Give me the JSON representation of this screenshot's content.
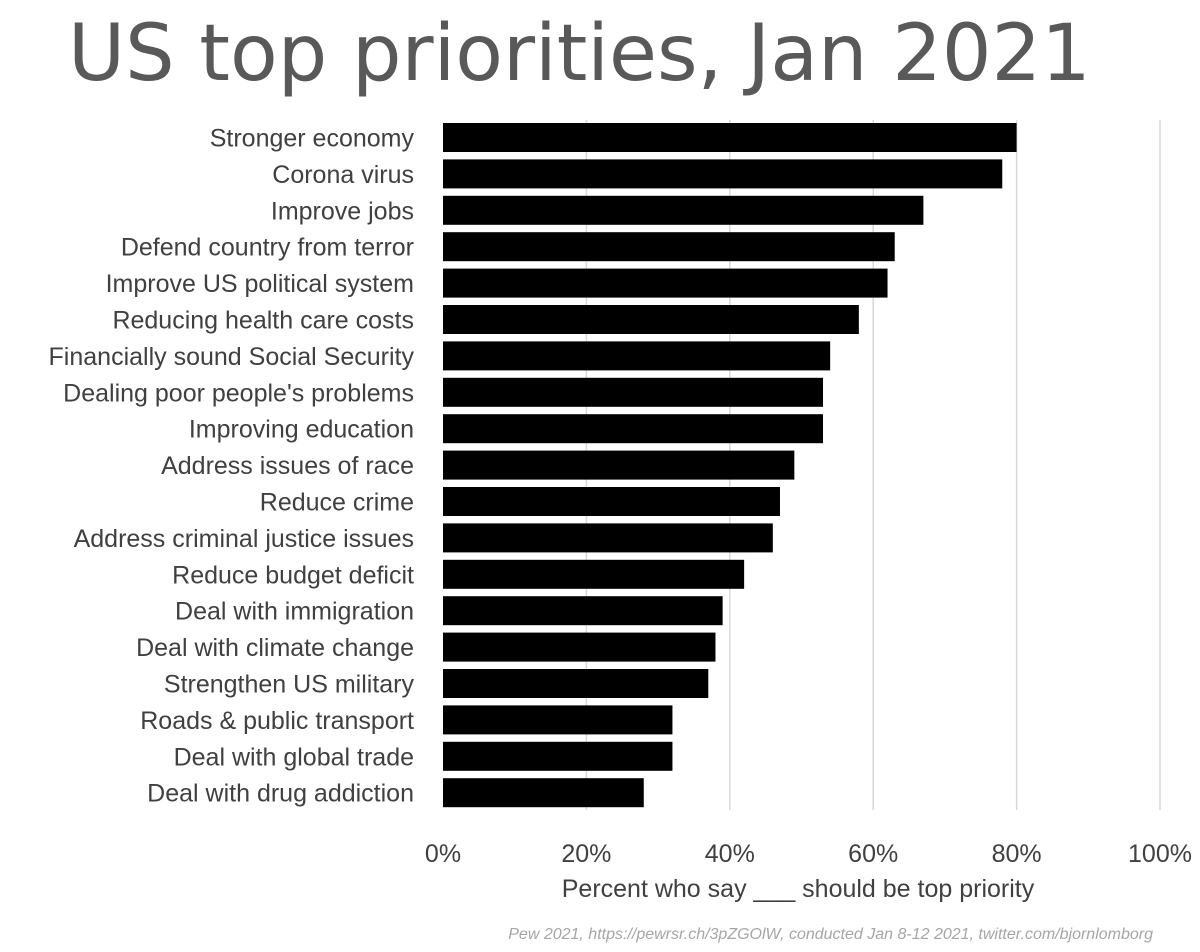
{
  "chart_data": {
    "type": "bar",
    "orientation": "horizontal",
    "title": "US top priorities, Jan 2021",
    "xlabel": "Percent who say ___ should be top priority",
    "ylabel": "",
    "xlim": [
      0,
      1
    ],
    "xticks": [
      "0%",
      "20%",
      "40%",
      "60%",
      "80%",
      "100%"
    ],
    "grid": true,
    "categories": [
      "Stronger economy",
      "Corona virus",
      "Improve jobs",
      "Defend country from terror",
      "Improve US political system",
      "Reducing health care costs",
      "Financially sound Social Security",
      "Dealing poor people's problems",
      "Improving education",
      "Address issues of race",
      "Reduce crime",
      "Address criminal justice issues",
      "Reduce budget deficit",
      "Deal with immigration",
      "Deal with climate change",
      "Strengthen US military",
      "Roads & public transport",
      "Deal with global trade ",
      "Deal with drug addiction"
    ],
    "values": [
      0.8,
      0.78,
      0.67,
      0.63,
      0.62,
      0.58,
      0.54,
      0.53,
      0.53,
      0.49,
      0.47,
      0.46,
      0.42,
      0.39,
      0.38,
      0.37,
      0.32,
      0.32,
      0.28
    ],
    "bar_color": "#000000",
    "source": "Pew 2021, https://pewrsr.ch/3pZGOlW, conducted Jan 8-12 2021, twitter.com/bjornlomborg"
  }
}
